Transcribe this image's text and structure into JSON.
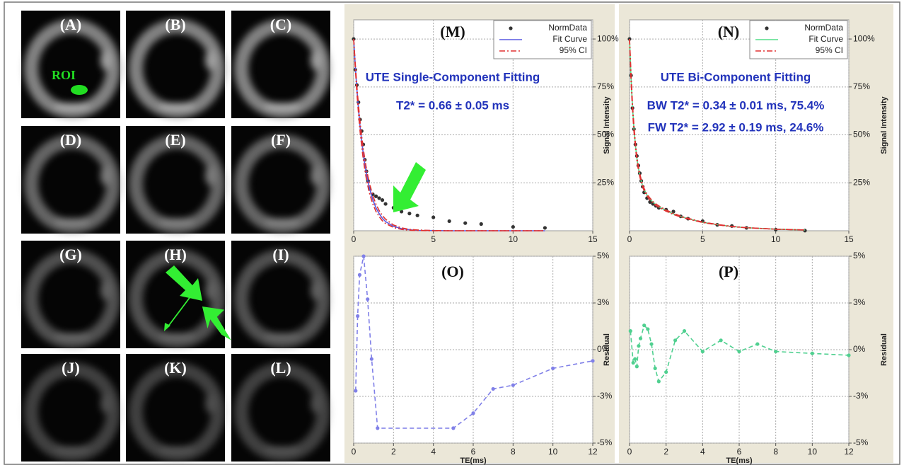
{
  "images": [
    {
      "label": "(A)"
    },
    {
      "label": "(B)"
    },
    {
      "label": "(C)"
    },
    {
      "label": "(D)"
    },
    {
      "label": "(E)"
    },
    {
      "label": "(F)"
    },
    {
      "label": "(G)"
    },
    {
      "label": "(H)"
    },
    {
      "label": "(I)"
    },
    {
      "label": "(J)"
    },
    {
      "label": "(K)"
    },
    {
      "label": "(L)"
    }
  ],
  "roi_label": "ROI",
  "chart_data": [
    {
      "type": "line",
      "panel_label": "(M)",
      "title": "UTE Single-Component Fitting",
      "annotations": [
        "T2* = 0.66 ± 0.05 ms"
      ],
      "ylabel": "Signal Intensity",
      "x": [
        0,
        0.1,
        0.2,
        0.3,
        0.4,
        0.5,
        0.6,
        0.7,
        0.8,
        0.9,
        1.0,
        1.2,
        1.4,
        1.6,
        1.8,
        2,
        2.5,
        3,
        3.5,
        4,
        5,
        6,
        7,
        8,
        10,
        12
      ],
      "series": [
        {
          "name": "NormData",
          "color": "#333333",
          "marker": "dot",
          "values": [
            100,
            84,
            76,
            67,
            58,
            52,
            45,
            37,
            31,
            26,
            22,
            19,
            18,
            17,
            16,
            14,
            12,
            10,
            9,
            8,
            7,
            5,
            4,
            3.5,
            2,
            1.5
          ]
        },
        {
          "name": "Fit Curve",
          "color": "#5a5ae0",
          "line_style": "solid",
          "values": [
            100,
            85.9,
            73.9,
            63.5,
            54.5,
            46.9,
            40.3,
            34.6,
            29.8,
            25.6,
            22.0,
            16.2,
            12.0,
            8.9,
            6.5,
            4.8,
            2.3,
            1.1,
            0.5,
            0.2,
            0.1,
            0,
            0,
            0,
            0,
            0
          ]
        },
        {
          "name": "95% CI",
          "color": "#e03030",
          "line_style": "dashdot",
          "lower": [
            100,
            84.9,
            72.0,
            61.2,
            51.9,
            44.1,
            37.4,
            31.7,
            26.9,
            22.9,
            19.4,
            14.0,
            10.1,
            7.3,
            5.2,
            3.8,
            1.7,
            0.7,
            0.3,
            0.1,
            0,
            0,
            0,
            0,
            0,
            0
          ],
          "upper": [
            100,
            86.9,
            75.4,
            65.5,
            56.9,
            49.4,
            43.0,
            37.3,
            32.4,
            28.1,
            24.4,
            18.4,
            13.9,
            10.5,
            7.9,
            6.0,
            3.0,
            1.5,
            0.7,
            0.4,
            0.1,
            0,
            0,
            0,
            0,
            0
          ]
        }
      ],
      "xlim": [
        0,
        15
      ],
      "xticks": [
        0,
        5,
        10,
        15
      ],
      "ylim": [
        0,
        110
      ],
      "yticks": [
        {
          "value": 25,
          "label": "25%"
        },
        {
          "value": 50,
          "label": "50%"
        },
        {
          "value": 75,
          "label": "75%"
        },
        {
          "value": 100,
          "label": "100%"
        }
      ],
      "grid": true,
      "legend": "top-right"
    },
    {
      "type": "line",
      "panel_label": "(N)",
      "title": "UTE Bi-Component Fitting",
      "annotations": [
        "BW T2* = 0.34 ± 0.01 ms, 75.4%",
        "FW T2* = 2.92 ± 0.19 ms, 24.6%"
      ],
      "ylabel": "Signal Intensity",
      "x": [
        0,
        0.1,
        0.2,
        0.3,
        0.4,
        0.5,
        0.6,
        0.7,
        0.8,
        0.9,
        1.0,
        1.2,
        1.4,
        1.6,
        1.8,
        2,
        2.5,
        3,
        3.5,
        4,
        5,
        6,
        7,
        8,
        10,
        12
      ],
      "series": [
        {
          "name": "NormData",
          "color": "#333333",
          "marker": "dot",
          "values": [
            100,
            81,
            64,
            53,
            45,
            39,
            34,
            30,
            26,
            23,
            20,
            17,
            15,
            14,
            13,
            12,
            11,
            10,
            7.5,
            6.3,
            5,
            3.1,
            2.5,
            1.5,
            0.6,
            0.1
          ]
        },
        {
          "name": "Fit Curve",
          "color": "#55dd88",
          "line_style": "solid",
          "values": [
            100,
            80.0,
            64.9,
            53.4,
            44.6,
            38.0,
            32.9,
            29.0,
            25.9,
            23.4,
            21.4,
            18.5,
            16.5,
            14.9,
            13.6,
            12.6,
            10.5,
            8.8,
            7.4,
            6.3,
            4.4,
            3.2,
            2.2,
            1.6,
            0.8,
            0.4
          ]
        },
        {
          "name": "95% CI",
          "color": "#e03030",
          "line_style": "dashdot",
          "lower": [
            100,
            78.5,
            63.3,
            52.0,
            43.4,
            37.0,
            32.0,
            28.2,
            25.2,
            22.8,
            20.8,
            18.0,
            16.0,
            14.5,
            13.2,
            12.2,
            10.2,
            8.5,
            7.2,
            6.1,
            4.3,
            3.1,
            2.1,
            1.6,
            0.8,
            0.4
          ],
          "upper": [
            100,
            81.5,
            66.5,
            54.8,
            45.8,
            39.0,
            33.8,
            29.8,
            26.6,
            24.0,
            22.0,
            19.0,
            17.0,
            15.3,
            14.0,
            13.0,
            10.8,
            9.1,
            7.6,
            6.5,
            4.5,
            3.3,
            2.3,
            1.6,
            0.8,
            0.4
          ]
        }
      ],
      "xlim": [
        0,
        15
      ],
      "xticks": [
        0,
        5,
        10,
        15
      ],
      "ylim": [
        0,
        110
      ],
      "yticks": [
        {
          "value": 25,
          "label": "25%"
        },
        {
          "value": 50,
          "label": "50%"
        },
        {
          "value": 75,
          "label": "75%"
        },
        {
          "value": 100,
          "label": "100%"
        }
      ],
      "grid": true,
      "legend": "top-right"
    },
    {
      "type": "line",
      "panel_label": "(O)",
      "xlabel": "TE(ms)",
      "ylabel": "Residual",
      "x": [
        0.1,
        0.2,
        0.3,
        0.5,
        0.7,
        0.9,
        1.2,
        5,
        6,
        7,
        8,
        10,
        12
      ],
      "values": [
        -2.2,
        1.8,
        4,
        5,
        2.7,
        -0.5,
        -4.2,
        -4.2,
        -3.4,
        -2.1,
        -1.9,
        -1.0,
        -0.6
      ],
      "color": "#8080e8",
      "line_style": "dashed",
      "marker": "dot",
      "xlim": [
        0,
        12
      ],
      "xticks": [
        0,
        2,
        4,
        6,
        8,
        10,
        12
      ],
      "ylim": [
        -5,
        5
      ],
      "yticks": [
        {
          "value": -5,
          "label": "-5%"
        },
        {
          "value": -2.5,
          "label": "-3%"
        },
        {
          "value": 0,
          "label": "0%"
        },
        {
          "value": 2.5,
          "label": "3%"
        },
        {
          "value": 5,
          "label": "5%"
        }
      ],
      "grid": true
    },
    {
      "type": "line",
      "panel_label": "(P)",
      "xlabel": "TE(ms)",
      "ylabel": "Residual",
      "x": [
        0.05,
        0.2,
        0.3,
        0.4,
        0.5,
        0.6,
        0.8,
        1.0,
        1.2,
        1.4,
        1.6,
        2,
        2.5,
        3,
        4,
        5,
        6,
        7,
        8,
        10,
        12
      ],
      "values": [
        1.0,
        -0.7,
        -0.5,
        -0.9,
        0.2,
        0.6,
        1.3,
        1.1,
        0.3,
        -1.0,
        -1.7,
        -1.2,
        0.5,
        1.0,
        -0.1,
        0.5,
        -0.1,
        0.3,
        -0.1,
        -0.2,
        -0.3
      ],
      "color": "#50d090",
      "line_style": "dashed",
      "marker": "dot",
      "xlim": [
        0,
        12
      ],
      "xticks": [
        0,
        2,
        4,
        6,
        8,
        10,
        12
      ],
      "ylim": [
        -5,
        5
      ],
      "yticks": [
        {
          "value": -5,
          "label": "-5%"
        },
        {
          "value": -2.5,
          "label": "-3%"
        },
        {
          "value": 0,
          "label": "0%"
        },
        {
          "value": 2.5,
          "label": "3%"
        },
        {
          "value": 5,
          "label": "5%"
        }
      ],
      "grid": true
    }
  ]
}
